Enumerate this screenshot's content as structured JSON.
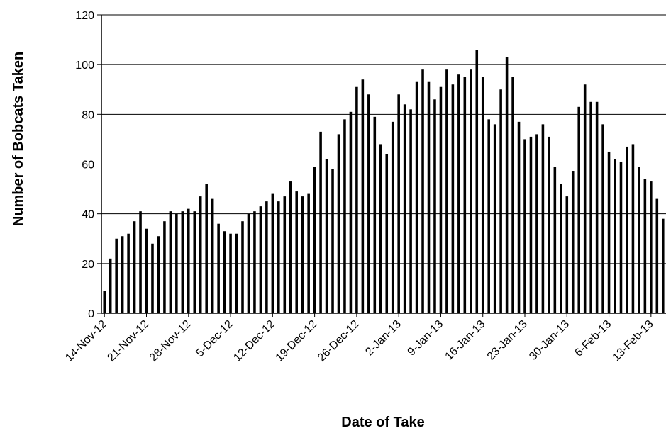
{
  "chart_data": {
    "type": "bar",
    "title": "",
    "xlabel": "Date of Take",
    "ylabel": "Number of Bobcats Taken",
    "ylim": [
      0,
      120
    ],
    "yticks": [
      0,
      20,
      40,
      60,
      80,
      100,
      120
    ],
    "grid": "horizontal",
    "legend": "none",
    "bar_color": "#000000",
    "start_date": "14-Nov-12",
    "x_tick_labels": [
      "14-Nov-12",
      "21-Nov-12",
      "28-Nov-12",
      "5-Dec-12",
      "12-Dec-12",
      "19-Dec-12",
      "26-Dec-12",
      "2-Jan-13",
      "9-Jan-13",
      "16-Jan-13",
      "23-Jan-13",
      "30-Jan-13",
      "6-Feb-13",
      "13-Feb-13"
    ],
    "values": [
      9,
      22,
      30,
      31,
      32,
      37,
      41,
      34,
      28,
      31,
      37,
      41,
      40,
      41,
      42,
      41,
      47,
      52,
      46,
      36,
      33,
      32,
      32,
      37,
      40,
      41,
      43,
      45,
      48,
      45,
      47,
      53,
      49,
      47,
      48,
      59,
      73,
      62,
      58,
      72,
      78,
      81,
      91,
      94,
      88,
      79,
      68,
      64,
      77,
      88,
      84,
      82,
      93,
      98,
      93,
      86,
      91,
      98,
      92,
      96,
      95,
      98,
      106,
      95,
      78,
      76,
      90,
      103,
      95,
      77,
      70,
      71,
      72,
      76,
      71,
      59,
      52,
      47,
      57,
      83,
      92,
      85,
      85,
      76,
      65,
      62,
      61,
      67,
      68,
      59,
      54,
      53,
      46,
      38
    ]
  }
}
